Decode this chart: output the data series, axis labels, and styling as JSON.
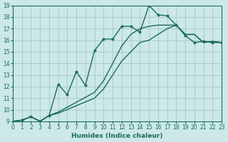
{
  "xlabel": "Humidex (Indice chaleur)",
  "bg_color": "#cce8e8",
  "grid_color": "#aacccc",
  "line_color": "#1a6b5a",
  "xlim": [
    0,
    23
  ],
  "ylim": [
    9,
    19
  ],
  "xticks": [
    0,
    1,
    2,
    3,
    4,
    5,
    6,
    7,
    8,
    9,
    10,
    11,
    12,
    13,
    14,
    15,
    16,
    17,
    18,
    19,
    20,
    21,
    22,
    23
  ],
  "yticks": [
    9,
    10,
    11,
    12,
    13,
    14,
    15,
    16,
    17,
    18,
    19
  ],
  "line1_x": [
    0,
    1,
    2,
    3,
    4,
    5,
    6,
    7,
    8,
    9,
    10,
    11,
    12,
    13,
    14,
    15,
    16,
    17,
    18,
    19,
    20,
    21,
    22,
    23
  ],
  "line1_y": [
    9,
    9.1,
    9.4,
    9.0,
    9.5,
    12.2,
    11.3,
    13.3,
    12.1,
    15.1,
    16.1,
    16.1,
    17.2,
    17.2,
    16.7,
    19.0,
    18.2,
    18.1,
    17.3,
    16.4,
    15.8,
    15.9,
    15.8,
    15.8
  ],
  "line2_x": [
    0,
    1,
    2,
    3,
    4,
    5,
    9,
    10,
    11,
    12,
    13,
    14,
    15,
    16,
    17,
    18,
    19,
    20,
    21,
    22,
    23
  ],
  "line2_y": [
    9,
    9.1,
    9.4,
    9.0,
    9.5,
    9.8,
    11.5,
    12.5,
    14.0,
    15.5,
    16.5,
    17.0,
    17.2,
    17.3,
    17.3,
    17.3,
    16.5,
    16.5,
    15.8,
    15.9,
    15.8
  ],
  "line3_x": [
    0,
    1,
    2,
    3,
    4,
    5,
    9,
    10,
    11,
    12,
    13,
    14,
    15,
    16,
    17,
    18,
    19,
    20,
    21,
    22,
    23
  ],
  "line3_y": [
    9,
    9.1,
    9.4,
    9.0,
    9.5,
    9.7,
    11.0,
    11.8,
    13.0,
    14.2,
    15.0,
    15.8,
    16.0,
    16.5,
    17.0,
    17.3,
    16.5,
    16.5,
    15.8,
    15.9,
    15.8
  ]
}
